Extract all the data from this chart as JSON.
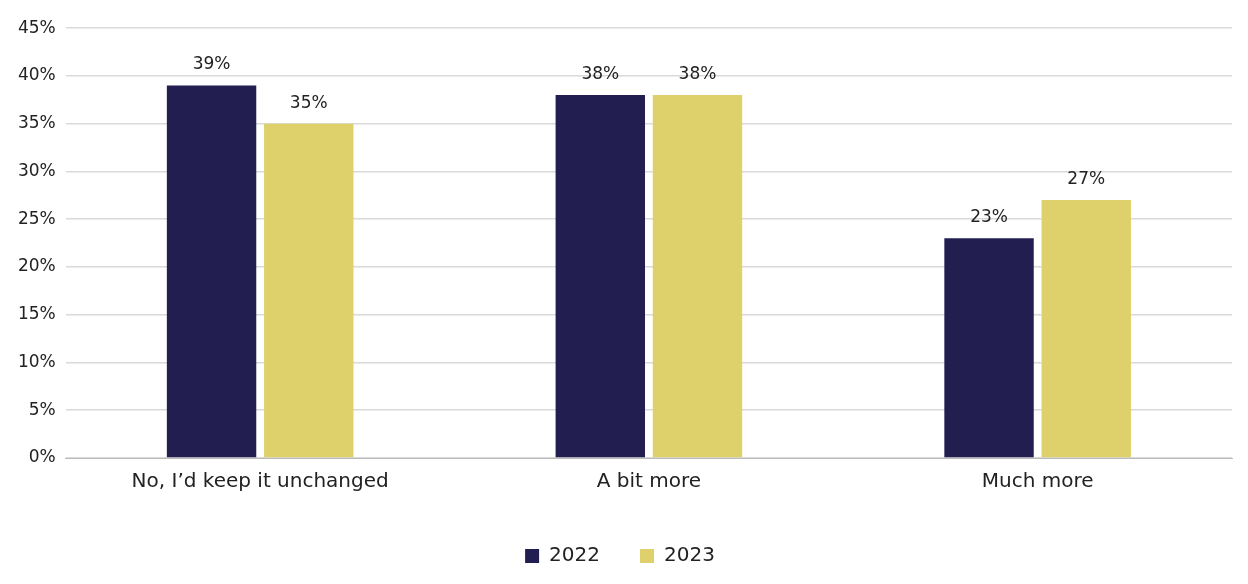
{
  "chart_data": {
    "type": "bar",
    "categories": [
      "No, I’d keep it unchanged",
      "A bit more",
      "Much more"
    ],
    "series": [
      {
        "name": "2022",
        "color": "#221e50",
        "values": [
          39,
          38,
          23
        ],
        "value_labels": [
          "39%",
          "38%",
          "23%"
        ]
      },
      {
        "name": "2023",
        "color": "#ded16c",
        "values": [
          35,
          38,
          27
        ],
        "value_labels": [
          "35%",
          "38%",
          "27%"
        ]
      }
    ],
    "ylim": [
      0,
      45
    ],
    "yticks": [
      {
        "value": 0,
        "label": "0%"
      },
      {
        "value": 5,
        "label": "5%"
      },
      {
        "value": 10,
        "label": "10%"
      },
      {
        "value": 15,
        "label": "15%"
      },
      {
        "value": 20,
        "label": "20%"
      },
      {
        "value": 25,
        "label": "25%"
      },
      {
        "value": 30,
        "label": "30%"
      },
      {
        "value": 35,
        "label": "35%"
      },
      {
        "value": 40,
        "label": "40%"
      },
      {
        "value": 45,
        "label": "45%"
      }
    ],
    "grid": "y",
    "legend": "bottom"
  }
}
